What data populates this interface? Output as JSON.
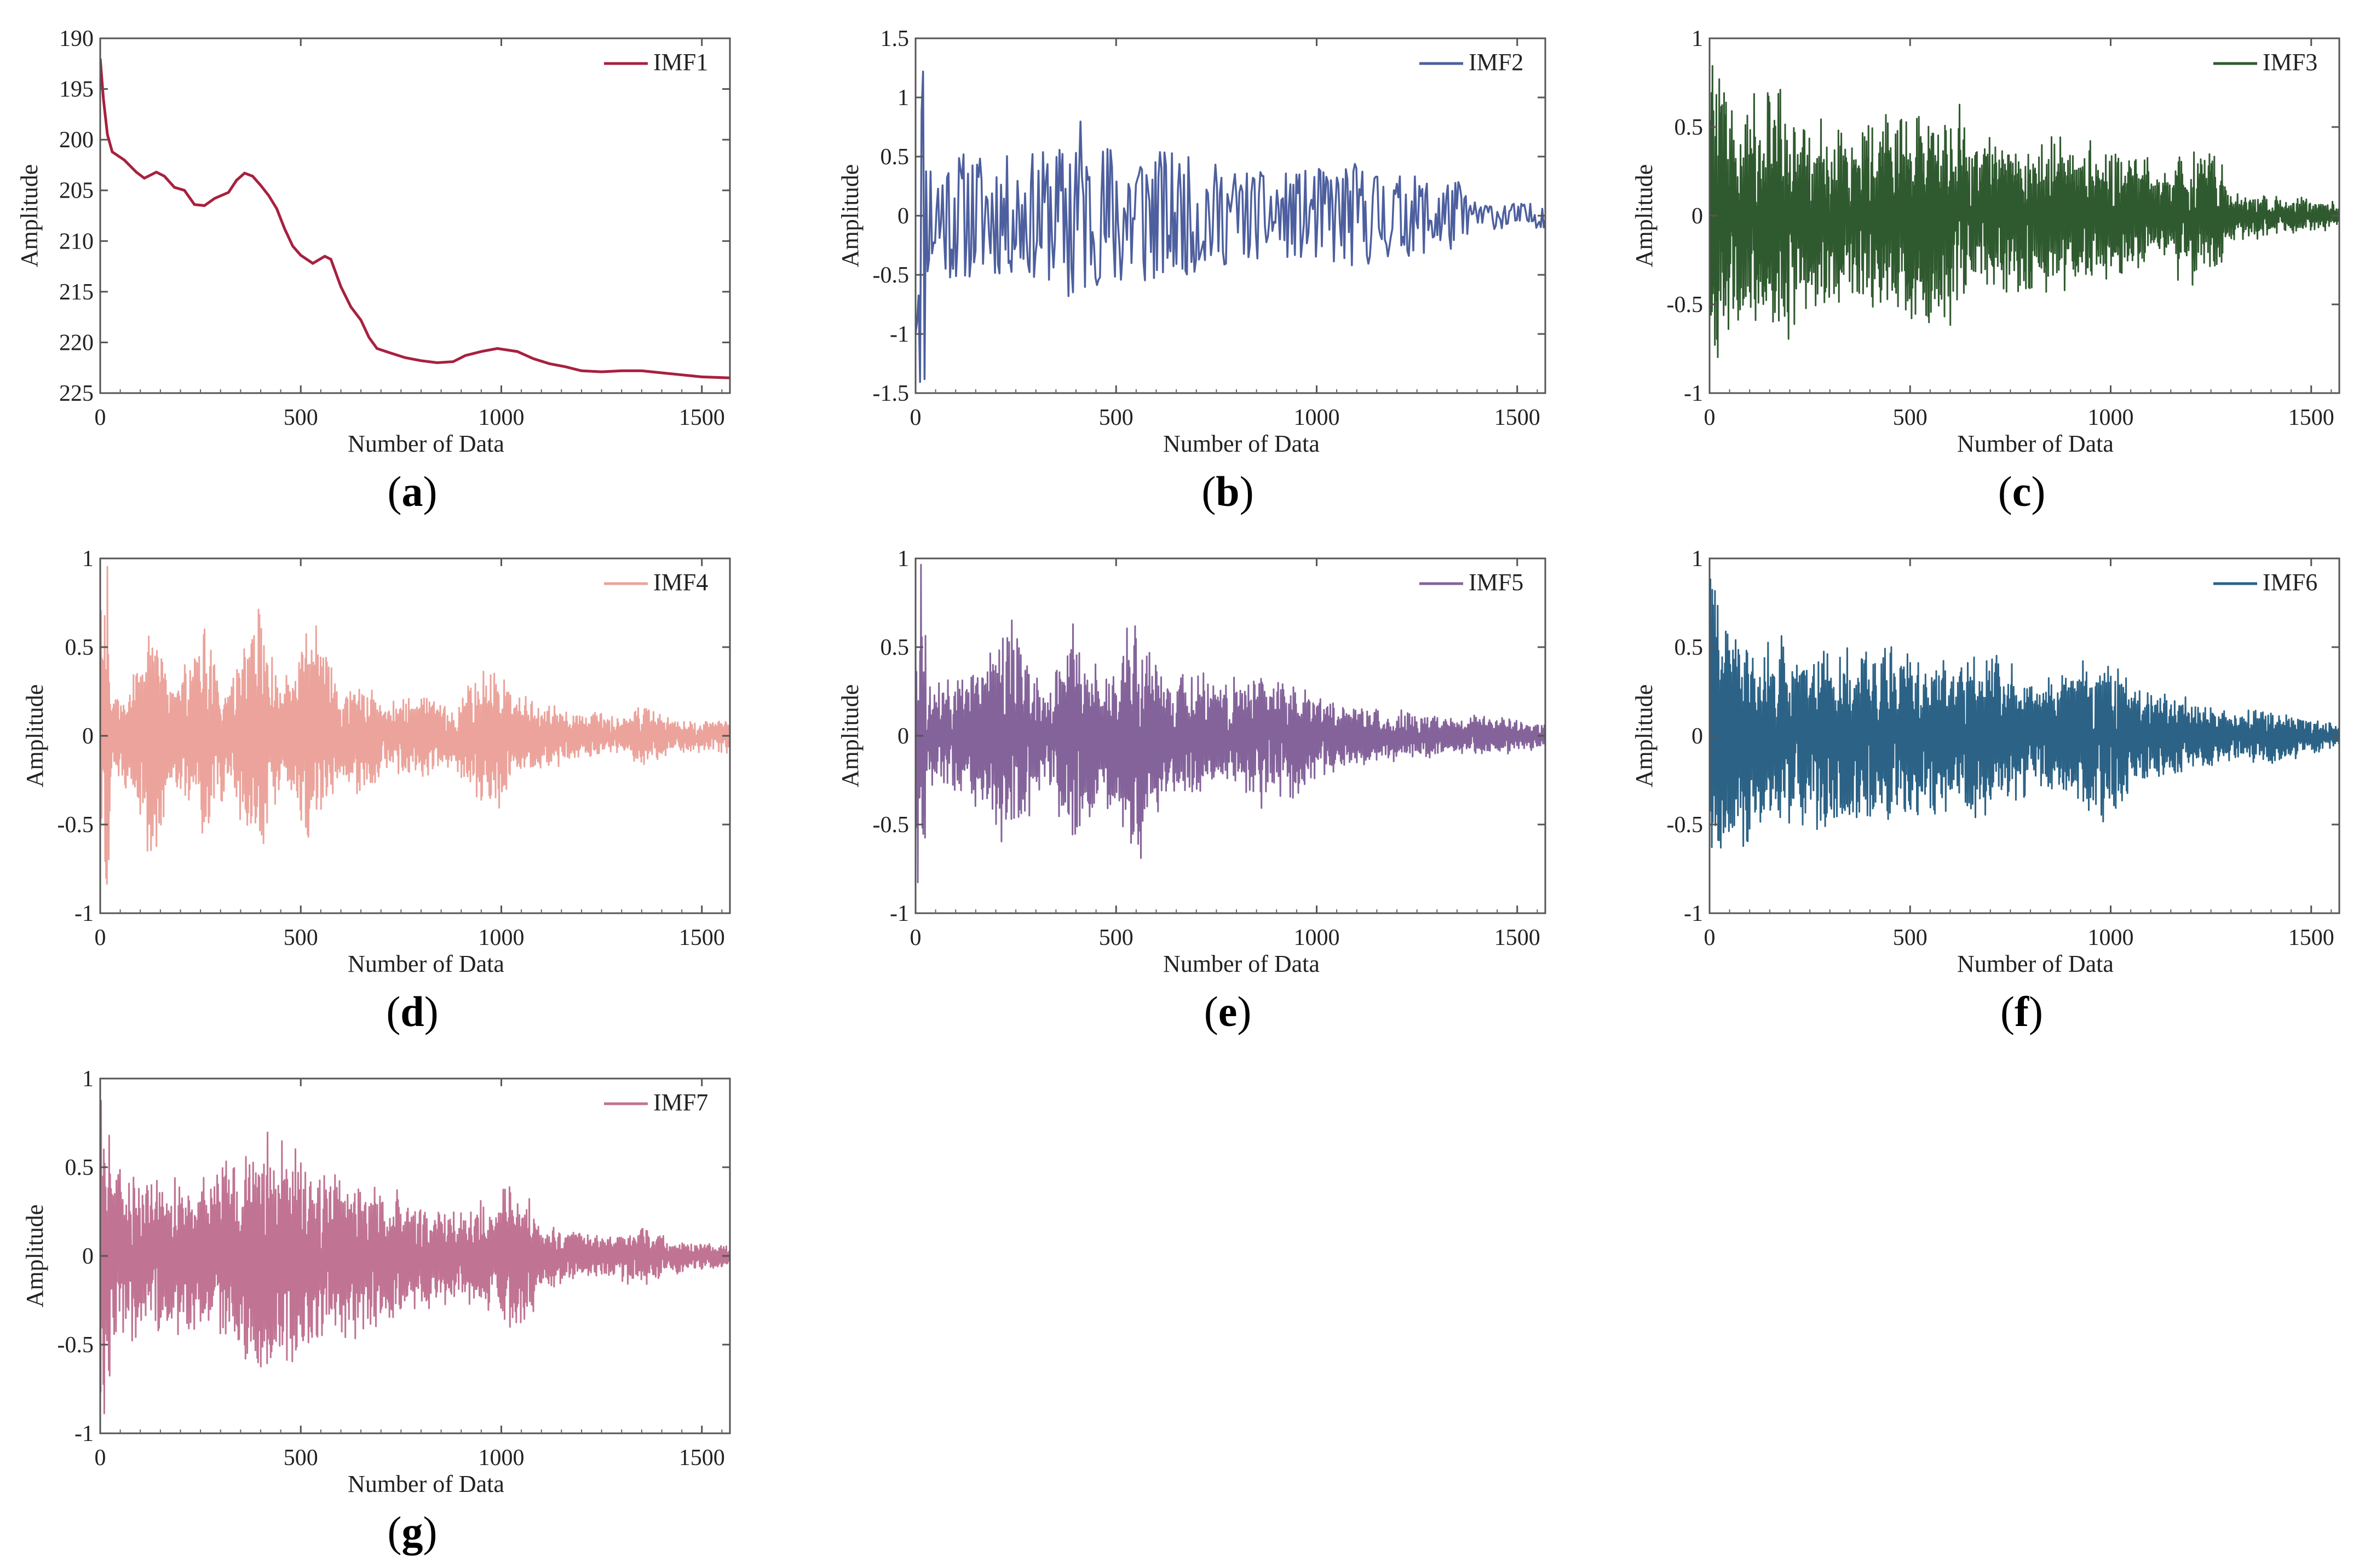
{
  "figure": {
    "x_axis_label": "Number of Data",
    "y_axis_label": "Amplitude"
  },
  "chart_data": [
    {
      "id": "a",
      "type": "line",
      "caption": "a",
      "legend": "IMF1",
      "color": "#a8203f",
      "xlabel": "Number of Data",
      "ylabel": "Amplitude",
      "xlim": [
        0,
        1570
      ],
      "ylim": [
        225,
        190
      ],
      "y_inverted": true,
      "xticks": [
        "0",
        "500",
        "1000",
        "1500"
      ],
      "xtick_values": [
        0,
        500,
        1000,
        1500
      ],
      "yticks": [
        "190",
        "195",
        "200",
        "205",
        "210",
        "215",
        "220",
        "225"
      ],
      "ytick_values": [
        190,
        195,
        200,
        205,
        210,
        215,
        220,
        225
      ],
      "kind": "trend",
      "trend_points": [
        [
          0,
          192
        ],
        [
          8,
          196
        ],
        [
          18,
          199.5
        ],
        [
          30,
          201.2
        ],
        [
          60,
          202
        ],
        [
          90,
          203.2
        ],
        [
          110,
          203.8
        ],
        [
          140,
          203.2
        ],
        [
          160,
          203.6
        ],
        [
          185,
          204.7
        ],
        [
          210,
          205
        ],
        [
          235,
          206.4
        ],
        [
          260,
          206.5
        ],
        [
          285,
          205.8
        ],
        [
          320,
          205.2
        ],
        [
          340,
          204
        ],
        [
          360,
          203.3
        ],
        [
          380,
          203.6
        ],
        [
          400,
          204.5
        ],
        [
          420,
          205.5
        ],
        [
          440,
          206.8
        ],
        [
          460,
          208.8
        ],
        [
          480,
          210.5
        ],
        [
          500,
          211.4
        ],
        [
          530,
          212.2
        ],
        [
          560,
          211.5
        ],
        [
          575,
          211.8
        ],
        [
          600,
          214.5
        ],
        [
          625,
          216.5
        ],
        [
          650,
          217.8
        ],
        [
          670,
          219.5
        ],
        [
          690,
          220.6
        ],
        [
          720,
          221
        ],
        [
          760,
          221.5
        ],
        [
          800,
          221.8
        ],
        [
          840,
          222
        ],
        [
          880,
          221.9
        ],
        [
          910,
          221.3
        ],
        [
          950,
          220.9
        ],
        [
          990,
          220.6
        ],
        [
          1040,
          220.9
        ],
        [
          1080,
          221.6
        ],
        [
          1120,
          222.1
        ],
        [
          1160,
          222.4
        ],
        [
          1200,
          222.8
        ],
        [
          1250,
          222.9
        ],
        [
          1300,
          222.8
        ],
        [
          1350,
          222.8
        ],
        [
          1400,
          223
        ],
        [
          1450,
          223.2
        ],
        [
          1500,
          223.4
        ],
        [
          1570,
          223.5
        ]
      ]
    },
    {
      "id": "b",
      "type": "line",
      "caption": "b",
      "legend": "IMF2",
      "color": "#4d5f9e",
      "xlabel": "Number of Data",
      "ylabel": "Amplitude",
      "xlim": [
        0,
        1570
      ],
      "ylim": [
        -1.5,
        1.5
      ],
      "xticks": [
        "0",
        "500",
        "1000",
        "1500"
      ],
      "xtick_values": [
        0,
        500,
        1000,
        1500
      ],
      "yticks": [
        "-1.5",
        "-1",
        "-0.5",
        "0",
        "0.5",
        "1",
        "1.5"
      ],
      "ytick_values": [
        -1.5,
        -1,
        -0.5,
        0,
        0.5,
        1,
        1.5
      ],
      "kind": "signal",
      "seed": 11,
      "n": 420,
      "fill": false,
      "start_burst": 1.5,
      "envelope": [
        [
          0,
          1.5
        ],
        [
          30,
          0.55
        ],
        [
          100,
          0.55
        ],
        [
          250,
          0.5
        ],
        [
          370,
          0.6
        ],
        [
          400,
          1.15
        ],
        [
          430,
          0.55
        ],
        [
          520,
          0.7
        ],
        [
          620,
          0.55
        ],
        [
          800,
          0.4
        ],
        [
          900,
          0.35
        ],
        [
          1100,
          0.45
        ],
        [
          1200,
          0.35
        ],
        [
          1360,
          0.3
        ],
        [
          1380,
          0.12
        ],
        [
          1570,
          0.1
        ]
      ]
    },
    {
      "id": "c",
      "type": "line",
      "caption": "c",
      "legend": "IMF3",
      "color": "#2f5a2f",
      "xlabel": "Number of Data",
      "ylabel": "Amplitude",
      "xlim": [
        0,
        1570
      ],
      "ylim": [
        -1,
        1
      ],
      "xticks": [
        "0",
        "500",
        "1000",
        "1500"
      ],
      "xtick_values": [
        0,
        500,
        1000,
        1500
      ],
      "yticks": [
        "-1",
        "-0.5",
        "0",
        "0.5",
        "1"
      ],
      "ytick_values": [
        -1,
        -0.5,
        0,
        0.5,
        1
      ],
      "kind": "signal",
      "seed": 23,
      "n": 1300,
      "fill": true,
      "start_burst": 1.0,
      "envelope": [
        [
          0,
          1
        ],
        [
          30,
          0.9
        ],
        [
          60,
          0.6
        ],
        [
          150,
          0.8
        ],
        [
          300,
          0.55
        ],
        [
          450,
          0.6
        ],
        [
          600,
          0.72
        ],
        [
          750,
          0.45
        ],
        [
          900,
          0.5
        ],
        [
          1000,
          0.4
        ],
        [
          1100,
          0.35
        ],
        [
          1260,
          0.42
        ],
        [
          1300,
          0.15
        ],
        [
          1450,
          0.12
        ],
        [
          1570,
          0.08
        ]
      ]
    },
    {
      "id": "d",
      "type": "line",
      "caption": "d",
      "legend": "IMF4",
      "color": "#eba39b",
      "xlabel": "Number of Data",
      "ylabel": "Amplitude",
      "xlim": [
        0,
        1570
      ],
      "ylim": [
        -1,
        1
      ],
      "xticks": [
        "0",
        "500",
        "1000",
        "1500"
      ],
      "xtick_values": [
        0,
        500,
        1000,
        1500
      ],
      "yticks": [
        "-1",
        "-0.5",
        "0",
        "0.5",
        "1"
      ],
      "ytick_values": [
        -1,
        -0.5,
        0,
        0.5,
        1
      ],
      "kind": "signal",
      "seed": 37,
      "n": 1400,
      "fill": true,
      "start_burst": 1.0,
      "envelope": [
        [
          0,
          1
        ],
        [
          30,
          0.25
        ],
        [
          80,
          0.35
        ],
        [
          135,
          0.85
        ],
        [
          180,
          0.3
        ],
        [
          260,
          0.7
        ],
        [
          320,
          0.3
        ],
        [
          400,
          0.85
        ],
        [
          450,
          0.3
        ],
        [
          530,
          0.72
        ],
        [
          600,
          0.3
        ],
        [
          660,
          0.4
        ],
        [
          720,
          0.2
        ],
        [
          800,
          0.3
        ],
        [
          880,
          0.2
        ],
        [
          980,
          0.5
        ],
        [
          1050,
          0.25
        ],
        [
          1150,
          0.2
        ],
        [
          1300,
          0.1
        ],
        [
          1370,
          0.22
        ],
        [
          1420,
          0.1
        ],
        [
          1570,
          0.1
        ]
      ]
    },
    {
      "id": "e",
      "type": "line",
      "caption": "e",
      "legend": "IMF5",
      "color": "#84639a",
      "xlabel": "Number of Data",
      "ylabel": "Amplitude",
      "xlim": [
        0,
        1570
      ],
      "ylim": [
        -1,
        1
      ],
      "xticks": [
        "0",
        "500",
        "1000",
        "1500"
      ],
      "xtick_values": [
        0,
        500,
        1000,
        1500
      ],
      "yticks": [
        "-1",
        "-0.5",
        "0",
        "0.5",
        "1"
      ],
      "ytick_values": [
        -1,
        -0.5,
        0,
        0.5,
        1
      ],
      "kind": "signal",
      "seed": 51,
      "n": 1400,
      "fill": true,
      "start_burst": 1.0,
      "envelope": [
        [
          0,
          1
        ],
        [
          30,
          0.3
        ],
        [
          120,
          0.35
        ],
        [
          250,
          0.75
        ],
        [
          320,
          0.3
        ],
        [
          400,
          0.72
        ],
        [
          460,
          0.35
        ],
        [
          550,
          0.82
        ],
        [
          620,
          0.35
        ],
        [
          700,
          0.4
        ],
        [
          760,
          0.3
        ],
        [
          850,
          0.45
        ],
        [
          950,
          0.35
        ],
        [
          1050,
          0.2
        ],
        [
          1200,
          0.15
        ],
        [
          1400,
          0.12
        ],
        [
          1570,
          0.08
        ]
      ]
    },
    {
      "id": "f",
      "type": "line",
      "caption": "f",
      "legend": "IMF6",
      "color": "#2b6286",
      "xlabel": "Number of Data",
      "ylabel": "Amplitude",
      "xlim": [
        0,
        1570
      ],
      "ylim": [
        -1,
        1
      ],
      "xticks": [
        "0",
        "500",
        "1000",
        "1500"
      ],
      "xtick_values": [
        0,
        500,
        1000,
        1500
      ],
      "yticks": [
        "-1",
        "-0.5",
        "0",
        "0.5",
        "1"
      ],
      "ytick_values": [
        -1,
        -0.5,
        0,
        0.5,
        1
      ],
      "kind": "signal",
      "seed": 67,
      "n": 1400,
      "fill": true,
      "start_burst": 1.0,
      "envelope": [
        [
          0,
          1
        ],
        [
          30,
          0.7
        ],
        [
          100,
          0.65
        ],
        [
          250,
          0.55
        ],
        [
          380,
          0.5
        ],
        [
          480,
          0.55
        ],
        [
          600,
          0.45
        ],
        [
          700,
          0.5
        ],
        [
          800,
          0.35
        ],
        [
          900,
          0.4
        ],
        [
          1000,
          0.6
        ],
        [
          1050,
          0.3
        ],
        [
          1150,
          0.25
        ],
        [
          1300,
          0.15
        ],
        [
          1400,
          0.18
        ],
        [
          1570,
          0.06
        ]
      ]
    },
    {
      "id": "g",
      "type": "line",
      "caption": "g",
      "legend": "IMF7",
      "color": "#c07392",
      "xlabel": "Number of Data",
      "ylabel": "Amplitude",
      "xlim": [
        0,
        1570
      ],
      "ylim": [
        -1,
        1
      ],
      "xticks": [
        "0",
        "500",
        "1000",
        "1500"
      ],
      "xtick_values": [
        0,
        500,
        1000,
        1500
      ],
      "yticks": [
        "-1",
        "-0.5",
        "0",
        "0.5",
        "1"
      ],
      "ytick_values": [
        -1,
        -0.5,
        0,
        0.5,
        1
      ],
      "kind": "signal",
      "seed": 79,
      "n": 1400,
      "fill": true,
      "start_burst": 1.0,
      "envelope": [
        [
          0,
          1
        ],
        [
          30,
          0.6
        ],
        [
          120,
          0.45
        ],
        [
          250,
          0.55
        ],
        [
          360,
          0.7
        ],
        [
          480,
          0.72
        ],
        [
          560,
          0.5
        ],
        [
          700,
          0.45
        ],
        [
          800,
          0.3
        ],
        [
          900,
          0.3
        ],
        [
          980,
          0.35
        ],
        [
          1060,
          0.52
        ],
        [
          1100,
          0.2
        ],
        [
          1250,
          0.12
        ],
        [
          1350,
          0.18
        ],
        [
          1450,
          0.1
        ],
        [
          1570,
          0.06
        ]
      ]
    }
  ]
}
